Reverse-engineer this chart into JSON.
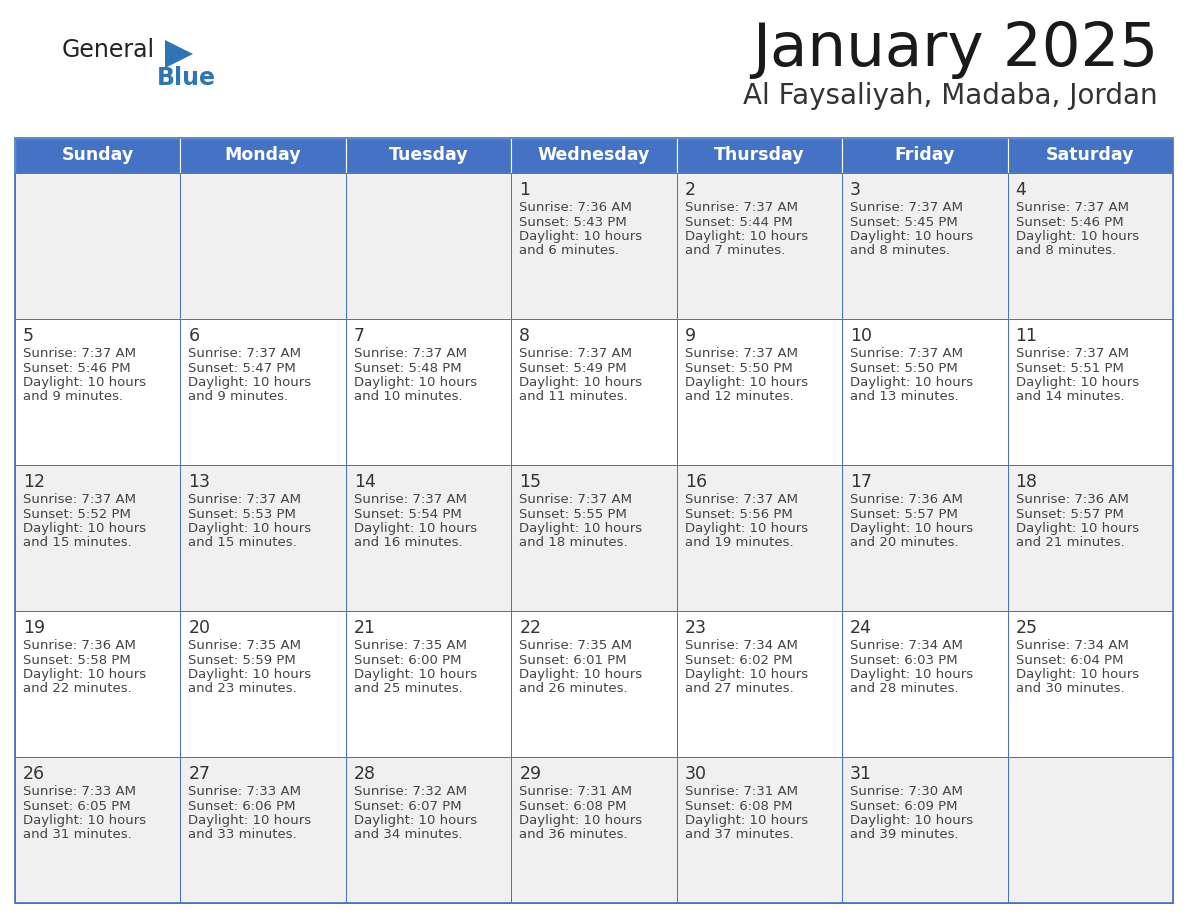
{
  "title": "January 2025",
  "subtitle": "Al Faysaliyah, Madaba, Jordan",
  "days_of_week": [
    "Sunday",
    "Monday",
    "Tuesday",
    "Wednesday",
    "Thursday",
    "Friday",
    "Saturday"
  ],
  "header_bg": "#4472C4",
  "header_text": "#FFFFFF",
  "cell_bg_white": "#FFFFFF",
  "cell_bg_gray": "#F0F0F0",
  "border_color": "#4472C4",
  "day_number_color": "#333333",
  "text_color": "#444444",
  "logo_general_color": "#222222",
  "logo_blue_color": "#2E75B6",
  "weeks": [
    [
      {
        "day": null,
        "sunrise": null,
        "sunset": null,
        "daylight": null
      },
      {
        "day": null,
        "sunrise": null,
        "sunset": null,
        "daylight": null
      },
      {
        "day": null,
        "sunrise": null,
        "sunset": null,
        "daylight": null
      },
      {
        "day": 1,
        "sunrise": "7:36 AM",
        "sunset": "5:43 PM",
        "daylight": "10 hours and 6 minutes."
      },
      {
        "day": 2,
        "sunrise": "7:37 AM",
        "sunset": "5:44 PM",
        "daylight": "10 hours and 7 minutes."
      },
      {
        "day": 3,
        "sunrise": "7:37 AM",
        "sunset": "5:45 PM",
        "daylight": "10 hours and 8 minutes."
      },
      {
        "day": 4,
        "sunrise": "7:37 AM",
        "sunset": "5:46 PM",
        "daylight": "10 hours and 8 minutes."
      }
    ],
    [
      {
        "day": 5,
        "sunrise": "7:37 AM",
        "sunset": "5:46 PM",
        "daylight": "10 hours and 9 minutes."
      },
      {
        "day": 6,
        "sunrise": "7:37 AM",
        "sunset": "5:47 PM",
        "daylight": "10 hours and 9 minutes."
      },
      {
        "day": 7,
        "sunrise": "7:37 AM",
        "sunset": "5:48 PM",
        "daylight": "10 hours and 10 minutes."
      },
      {
        "day": 8,
        "sunrise": "7:37 AM",
        "sunset": "5:49 PM",
        "daylight": "10 hours and 11 minutes."
      },
      {
        "day": 9,
        "sunrise": "7:37 AM",
        "sunset": "5:50 PM",
        "daylight": "10 hours and 12 minutes."
      },
      {
        "day": 10,
        "sunrise": "7:37 AM",
        "sunset": "5:50 PM",
        "daylight": "10 hours and 13 minutes."
      },
      {
        "day": 11,
        "sunrise": "7:37 AM",
        "sunset": "5:51 PM",
        "daylight": "10 hours and 14 minutes."
      }
    ],
    [
      {
        "day": 12,
        "sunrise": "7:37 AM",
        "sunset": "5:52 PM",
        "daylight": "10 hours and 15 minutes."
      },
      {
        "day": 13,
        "sunrise": "7:37 AM",
        "sunset": "5:53 PM",
        "daylight": "10 hours and 15 minutes."
      },
      {
        "day": 14,
        "sunrise": "7:37 AM",
        "sunset": "5:54 PM",
        "daylight": "10 hours and 16 minutes."
      },
      {
        "day": 15,
        "sunrise": "7:37 AM",
        "sunset": "5:55 PM",
        "daylight": "10 hours and 18 minutes."
      },
      {
        "day": 16,
        "sunrise": "7:37 AM",
        "sunset": "5:56 PM",
        "daylight": "10 hours and 19 minutes."
      },
      {
        "day": 17,
        "sunrise": "7:36 AM",
        "sunset": "5:57 PM",
        "daylight": "10 hours and 20 minutes."
      },
      {
        "day": 18,
        "sunrise": "7:36 AM",
        "sunset": "5:57 PM",
        "daylight": "10 hours and 21 minutes."
      }
    ],
    [
      {
        "day": 19,
        "sunrise": "7:36 AM",
        "sunset": "5:58 PM",
        "daylight": "10 hours and 22 minutes."
      },
      {
        "day": 20,
        "sunrise": "7:35 AM",
        "sunset": "5:59 PM",
        "daylight": "10 hours and 23 minutes."
      },
      {
        "day": 21,
        "sunrise": "7:35 AM",
        "sunset": "6:00 PM",
        "daylight": "10 hours and 25 minutes."
      },
      {
        "day": 22,
        "sunrise": "7:35 AM",
        "sunset": "6:01 PM",
        "daylight": "10 hours and 26 minutes."
      },
      {
        "day": 23,
        "sunrise": "7:34 AM",
        "sunset": "6:02 PM",
        "daylight": "10 hours and 27 minutes."
      },
      {
        "day": 24,
        "sunrise": "7:34 AM",
        "sunset": "6:03 PM",
        "daylight": "10 hours and 28 minutes."
      },
      {
        "day": 25,
        "sunrise": "7:34 AM",
        "sunset": "6:04 PM",
        "daylight": "10 hours and 30 minutes."
      }
    ],
    [
      {
        "day": 26,
        "sunrise": "7:33 AM",
        "sunset": "6:05 PM",
        "daylight": "10 hours and 31 minutes."
      },
      {
        "day": 27,
        "sunrise": "7:33 AM",
        "sunset": "6:06 PM",
        "daylight": "10 hours and 33 minutes."
      },
      {
        "day": 28,
        "sunrise": "7:32 AM",
        "sunset": "6:07 PM",
        "daylight": "10 hours and 34 minutes."
      },
      {
        "day": 29,
        "sunrise": "7:31 AM",
        "sunset": "6:08 PM",
        "daylight": "10 hours and 36 minutes."
      },
      {
        "day": 30,
        "sunrise": "7:31 AM",
        "sunset": "6:08 PM",
        "daylight": "10 hours and 37 minutes."
      },
      {
        "day": 31,
        "sunrise": "7:30 AM",
        "sunset": "6:09 PM",
        "daylight": "10 hours and 39 minutes."
      },
      {
        "day": null,
        "sunrise": null,
        "sunset": null,
        "daylight": null
      }
    ]
  ]
}
